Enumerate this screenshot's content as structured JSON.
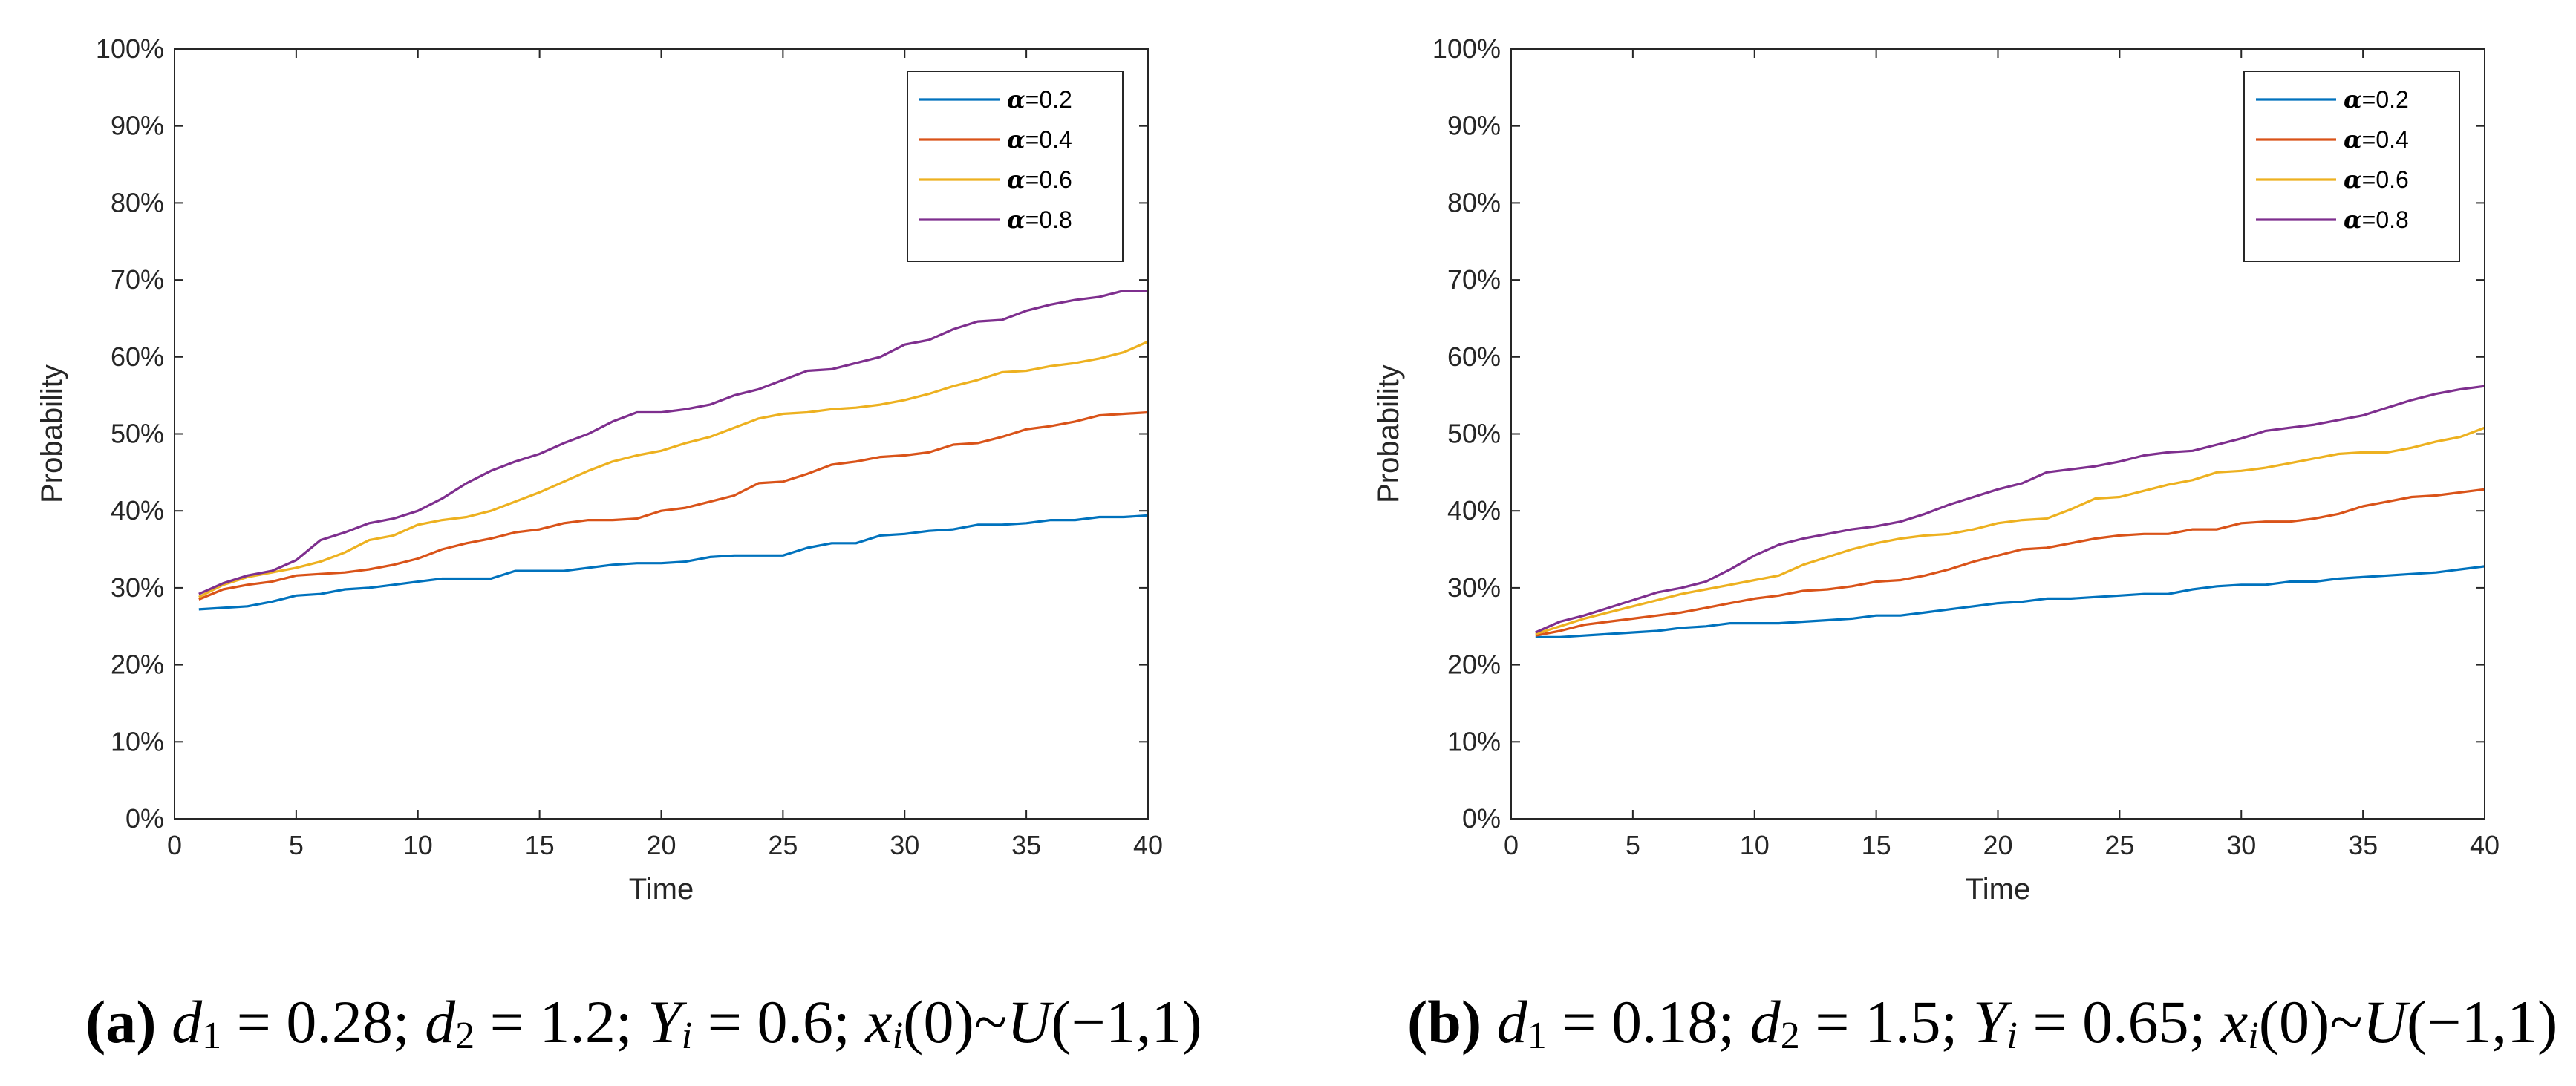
{
  "chart_data": [
    {
      "id": "a",
      "type": "line",
      "xlabel": "Time",
      "ylabel": "Probability",
      "xlim": [
        0,
        40
      ],
      "ylim": [
        0,
        100
      ],
      "xticks": [
        "0",
        "5",
        "10",
        "15",
        "20",
        "25",
        "30",
        "35",
        "40"
      ],
      "yticks": [
        "0%",
        "10%",
        "20%",
        "30%",
        "40%",
        "50%",
        "60%",
        "70%",
        "80%",
        "90%",
        "100%"
      ],
      "x": [
        1,
        2,
        3,
        4,
        5,
        6,
        7,
        8,
        9,
        10,
        11,
        12,
        13,
        14,
        15,
        16,
        17,
        18,
        19,
        20,
        21,
        22,
        23,
        24,
        25,
        26,
        27,
        28,
        29,
        30,
        31,
        32,
        33,
        34,
        35,
        36,
        37,
        38,
        39,
        40
      ],
      "series": [
        {
          "name": "=0.2",
          "alpha_symbol": "α",
          "color": "#0072BD",
          "values": [
            27.2,
            27.4,
            27.6,
            28.2,
            29.0,
            29.2,
            29.8,
            30.0,
            30.4,
            30.8,
            31.2,
            31.2,
            31.2,
            32.2,
            32.2,
            32.2,
            32.6,
            33.0,
            33.2,
            33.2,
            33.4,
            34.0,
            34.2,
            34.2,
            34.2,
            35.2,
            35.8,
            35.8,
            36.8,
            37.0,
            37.4,
            37.6,
            38.2,
            38.2,
            38.4,
            38.8,
            38.8,
            39.2,
            39.2,
            39.4
          ]
        },
        {
          "name": "=0.4",
          "alpha_symbol": "α",
          "color": "#D95319",
          "values": [
            28.5,
            29.8,
            30.4,
            30.8,
            31.6,
            31.8,
            32.0,
            32.4,
            33.0,
            33.8,
            35.0,
            35.8,
            36.4,
            37.2,
            37.6,
            38.4,
            38.8,
            38.8,
            39.0,
            40.0,
            40.4,
            41.2,
            42.0,
            43.6,
            43.8,
            44.8,
            46.0,
            46.4,
            47.0,
            47.2,
            47.6,
            48.6,
            48.8,
            49.6,
            50.6,
            51.0,
            51.6,
            52.4,
            52.6,
            52.8
          ]
        },
        {
          "name": "=0.6",
          "alpha_symbol": "α",
          "color": "#EDB120",
          "values": [
            28.8,
            30.4,
            31.4,
            32.0,
            32.6,
            33.4,
            34.6,
            36.2,
            36.8,
            38.2,
            38.8,
            39.2,
            40.0,
            41.2,
            42.4,
            43.8,
            45.2,
            46.4,
            47.2,
            47.8,
            48.8,
            49.6,
            50.8,
            52.0,
            52.6,
            52.8,
            53.2,
            53.4,
            53.8,
            54.4,
            55.2,
            56.2,
            57.0,
            58.0,
            58.2,
            58.8,
            59.2,
            59.8,
            60.6,
            62.0
          ]
        },
        {
          "name": "=0.8",
          "alpha_symbol": "α",
          "color": "#7E2F8E",
          "values": [
            29.2,
            30.6,
            31.6,
            32.2,
            33.6,
            36.2,
            37.2,
            38.4,
            39.0,
            40.0,
            41.6,
            43.6,
            45.2,
            46.4,
            47.4,
            48.8,
            50.0,
            51.6,
            52.8,
            52.8,
            53.2,
            53.8,
            55.0,
            55.8,
            57.0,
            58.2,
            58.4,
            59.2,
            60.0,
            61.6,
            62.2,
            63.6,
            64.6,
            64.8,
            66.0,
            66.8,
            67.4,
            67.8,
            68.6,
            68.6
          ]
        }
      ],
      "legend_position": "top-right"
    },
    {
      "id": "b",
      "type": "line",
      "xlabel": "Time",
      "ylabel": "Probability",
      "xlim": [
        0,
        40
      ],
      "ylim": [
        0,
        100
      ],
      "xticks": [
        "0",
        "5",
        "10",
        "15",
        "20",
        "25",
        "30",
        "35",
        "40"
      ],
      "yticks": [
        "0%",
        "10%",
        "20%",
        "30%",
        "40%",
        "50%",
        "60%",
        "70%",
        "80%",
        "90%",
        "100%"
      ],
      "x": [
        1,
        2,
        3,
        4,
        5,
        6,
        7,
        8,
        9,
        10,
        11,
        12,
        13,
        14,
        15,
        16,
        17,
        18,
        19,
        20,
        21,
        22,
        23,
        24,
        25,
        26,
        27,
        28,
        29,
        30,
        31,
        32,
        33,
        34,
        35,
        36,
        37,
        38,
        39,
        40
      ],
      "series": [
        {
          "name": "=0.2",
          "alpha_symbol": "α",
          "color": "#0072BD",
          "values": [
            23.6,
            23.6,
            23.8,
            24.0,
            24.2,
            24.4,
            24.8,
            25.0,
            25.4,
            25.4,
            25.4,
            25.6,
            25.8,
            26.0,
            26.4,
            26.4,
            26.8,
            27.2,
            27.6,
            28.0,
            28.2,
            28.6,
            28.6,
            28.8,
            29.0,
            29.2,
            29.2,
            29.8,
            30.2,
            30.4,
            30.4,
            30.8,
            30.8,
            31.2,
            31.4,
            31.6,
            31.8,
            32.0,
            32.4,
            32.8
          ]
        },
        {
          "name": "=0.4",
          "alpha_symbol": "α",
          "color": "#D95319",
          "values": [
            23.8,
            24.4,
            25.2,
            25.6,
            26.0,
            26.4,
            26.8,
            27.4,
            28.0,
            28.6,
            29.0,
            29.6,
            29.8,
            30.2,
            30.8,
            31.0,
            31.6,
            32.4,
            33.4,
            34.2,
            35.0,
            35.2,
            35.8,
            36.4,
            36.8,
            37.0,
            37.0,
            37.6,
            37.6,
            38.4,
            38.6,
            38.6,
            39.0,
            39.6,
            40.6,
            41.2,
            41.8,
            42.0,
            42.4,
            42.8
          ]
        },
        {
          "name": "=0.6",
          "alpha_symbol": "α",
          "color": "#EDB120",
          "values": [
            24.0,
            25.0,
            26.0,
            26.8,
            27.6,
            28.4,
            29.2,
            29.8,
            30.4,
            31.0,
            31.6,
            33.0,
            34.0,
            35.0,
            35.8,
            36.4,
            36.8,
            37.0,
            37.6,
            38.4,
            38.8,
            39.0,
            40.2,
            41.6,
            41.8,
            42.6,
            43.4,
            44.0,
            45.0,
            45.2,
            45.6,
            46.2,
            46.8,
            47.4,
            47.6,
            47.6,
            48.2,
            49.0,
            49.6,
            50.8
          ]
        },
        {
          "name": "=0.8",
          "alpha_symbol": "α",
          "color": "#7E2F8E",
          "values": [
            24.2,
            25.6,
            26.4,
            27.4,
            28.4,
            29.4,
            30.0,
            30.8,
            32.4,
            34.2,
            35.6,
            36.4,
            37.0,
            37.6,
            38.0,
            38.6,
            39.6,
            40.8,
            41.8,
            42.8,
            43.6,
            45.0,
            45.4,
            45.8,
            46.4,
            47.2,
            47.6,
            47.8,
            48.6,
            49.4,
            50.4,
            50.8,
            51.2,
            51.8,
            52.4,
            53.4,
            54.4,
            55.2,
            55.8,
            56.2
          ]
        }
      ],
      "legend_position": "top-right"
    }
  ],
  "captions": [
    {
      "label": "(a)",
      "d1_sym": "d",
      "d1_sub": "1",
      "d1_val": " = 0.28; ",
      "d2_sym": "d",
      "d2_sub": "2",
      "d2_val": " = 1.2; ",
      "y_sym": "Y",
      "y_sub": "i",
      "y_val": " = 0.6; ",
      "x_sym": "x",
      "x_sub": "i",
      "x_val": "(0)~",
      "u_sym": "U",
      "u_val": "(−1,1)"
    },
    {
      "label": "(b)",
      "d1_sym": "d",
      "d1_sub": "1",
      "d1_val": " = 0.18; ",
      "d2_sym": "d",
      "d2_sub": "2",
      "d2_val": " = 1.5; ",
      "y_sym": "Y",
      "y_sub": "i",
      "y_val": " = 0.65; ",
      "x_sym": "x",
      "x_sub": "i",
      "x_val": "(0)~",
      "u_sym": "U",
      "u_val": "(−1,1)"
    }
  ]
}
